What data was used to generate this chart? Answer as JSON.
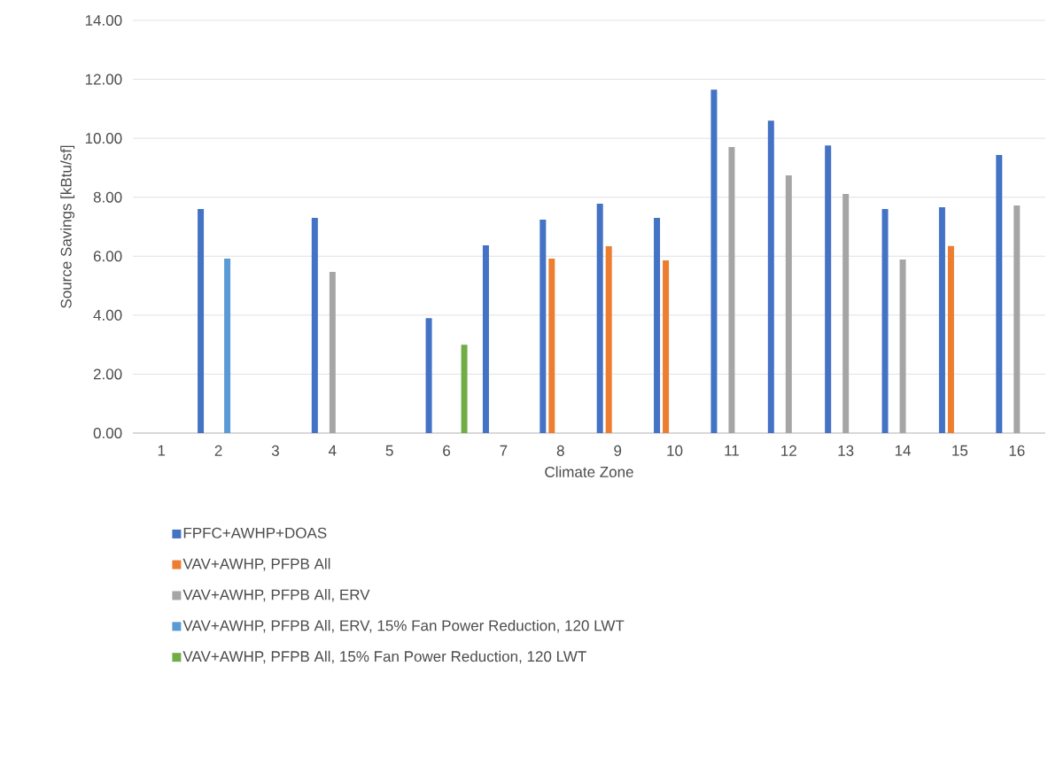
{
  "chart_data": {
    "type": "bar",
    "xlabel": "Climate Zone",
    "ylabel": "Source Savings [kBtu/sf]",
    "categories": [
      "1",
      "2",
      "3",
      "4",
      "5",
      "6",
      "7",
      "8",
      "9",
      "10",
      "11",
      "12",
      "13",
      "14",
      "15",
      "16"
    ],
    "series": [
      {
        "name": "FPFC+AWHP+DOAS",
        "color": "#4472c4",
        "values": [
          null,
          7.6,
          null,
          7.3,
          null,
          3.9,
          6.37,
          7.24,
          7.78,
          7.3,
          11.65,
          10.6,
          9.76,
          7.6,
          7.66,
          9.43
        ]
      },
      {
        "name": "VAV+AWHP, PFPB All",
        "color": "#ed7d31",
        "values": [
          null,
          null,
          null,
          null,
          null,
          null,
          null,
          5.92,
          6.34,
          5.86,
          null,
          null,
          null,
          null,
          6.35,
          null
        ]
      },
      {
        "name": "VAV+AWHP, PFPB All, ERV",
        "color": "#a5a5a5",
        "values": [
          null,
          null,
          null,
          5.47,
          null,
          null,
          null,
          null,
          null,
          null,
          9.7,
          8.74,
          8.11,
          5.89,
          null,
          7.72
        ]
      },
      {
        "name": "VAV+AWHP, PFPB All, ERV, 15% Fan Power Reduction, 120 LWT",
        "color": "#5b9bd5",
        "values": [
          null,
          5.92,
          null,
          null,
          null,
          null,
          null,
          null,
          null,
          null,
          null,
          null,
          null,
          null,
          null,
          null
        ]
      },
      {
        "name": "VAV+AWHP, PFPB All, 15% Fan Power Reduction, 120 LWT",
        "color": "#70ad47",
        "values": [
          null,
          null,
          null,
          null,
          null,
          3.0,
          null,
          null,
          null,
          null,
          null,
          null,
          null,
          null,
          null,
          null
        ]
      }
    ],
    "ylim": [
      0,
      14
    ],
    "yticks": [
      {
        "value": 0,
        "label": "0.00"
      },
      {
        "value": 2,
        "label": "2.00"
      },
      {
        "value": 4,
        "label": "4.00"
      },
      {
        "value": 6,
        "label": "6.00"
      },
      {
        "value": 8,
        "label": "8.00"
      },
      {
        "value": 10,
        "label": "10.00"
      },
      {
        "value": 12,
        "label": "12.00"
      },
      {
        "value": 14,
        "label": "14.00"
      }
    ],
    "grid": "y",
    "legend": "bottom"
  }
}
